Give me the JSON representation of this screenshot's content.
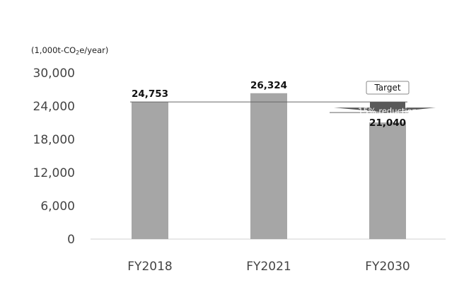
{
  "chart_data": {
    "type": "bar",
    "unit_label": {
      "prefix": "(1,000t-CO",
      "sub": "2",
      "suffix": "e/year)"
    },
    "categories": [
      "FY2018",
      "FY2021",
      "FY2030"
    ],
    "values": [
      24753,
      26324,
      21040
    ],
    "value_labels": [
      "24,753",
      "26,324",
      "21,040"
    ],
    "yticks": [
      "0",
      "6,000",
      "12,000",
      "18,000",
      "24,000",
      "30,000"
    ],
    "ytick_values": [
      0,
      6000,
      12000,
      18000,
      24000,
      30000
    ],
    "ylim": [
      0,
      30000
    ],
    "bar_color": "#a6a6a6",
    "reference_line_value": 24753,
    "annotations": {
      "target_label": "Target",
      "reduction_label": "15% reduction",
      "arrow_color": "#595959"
    },
    "grid": false
  }
}
